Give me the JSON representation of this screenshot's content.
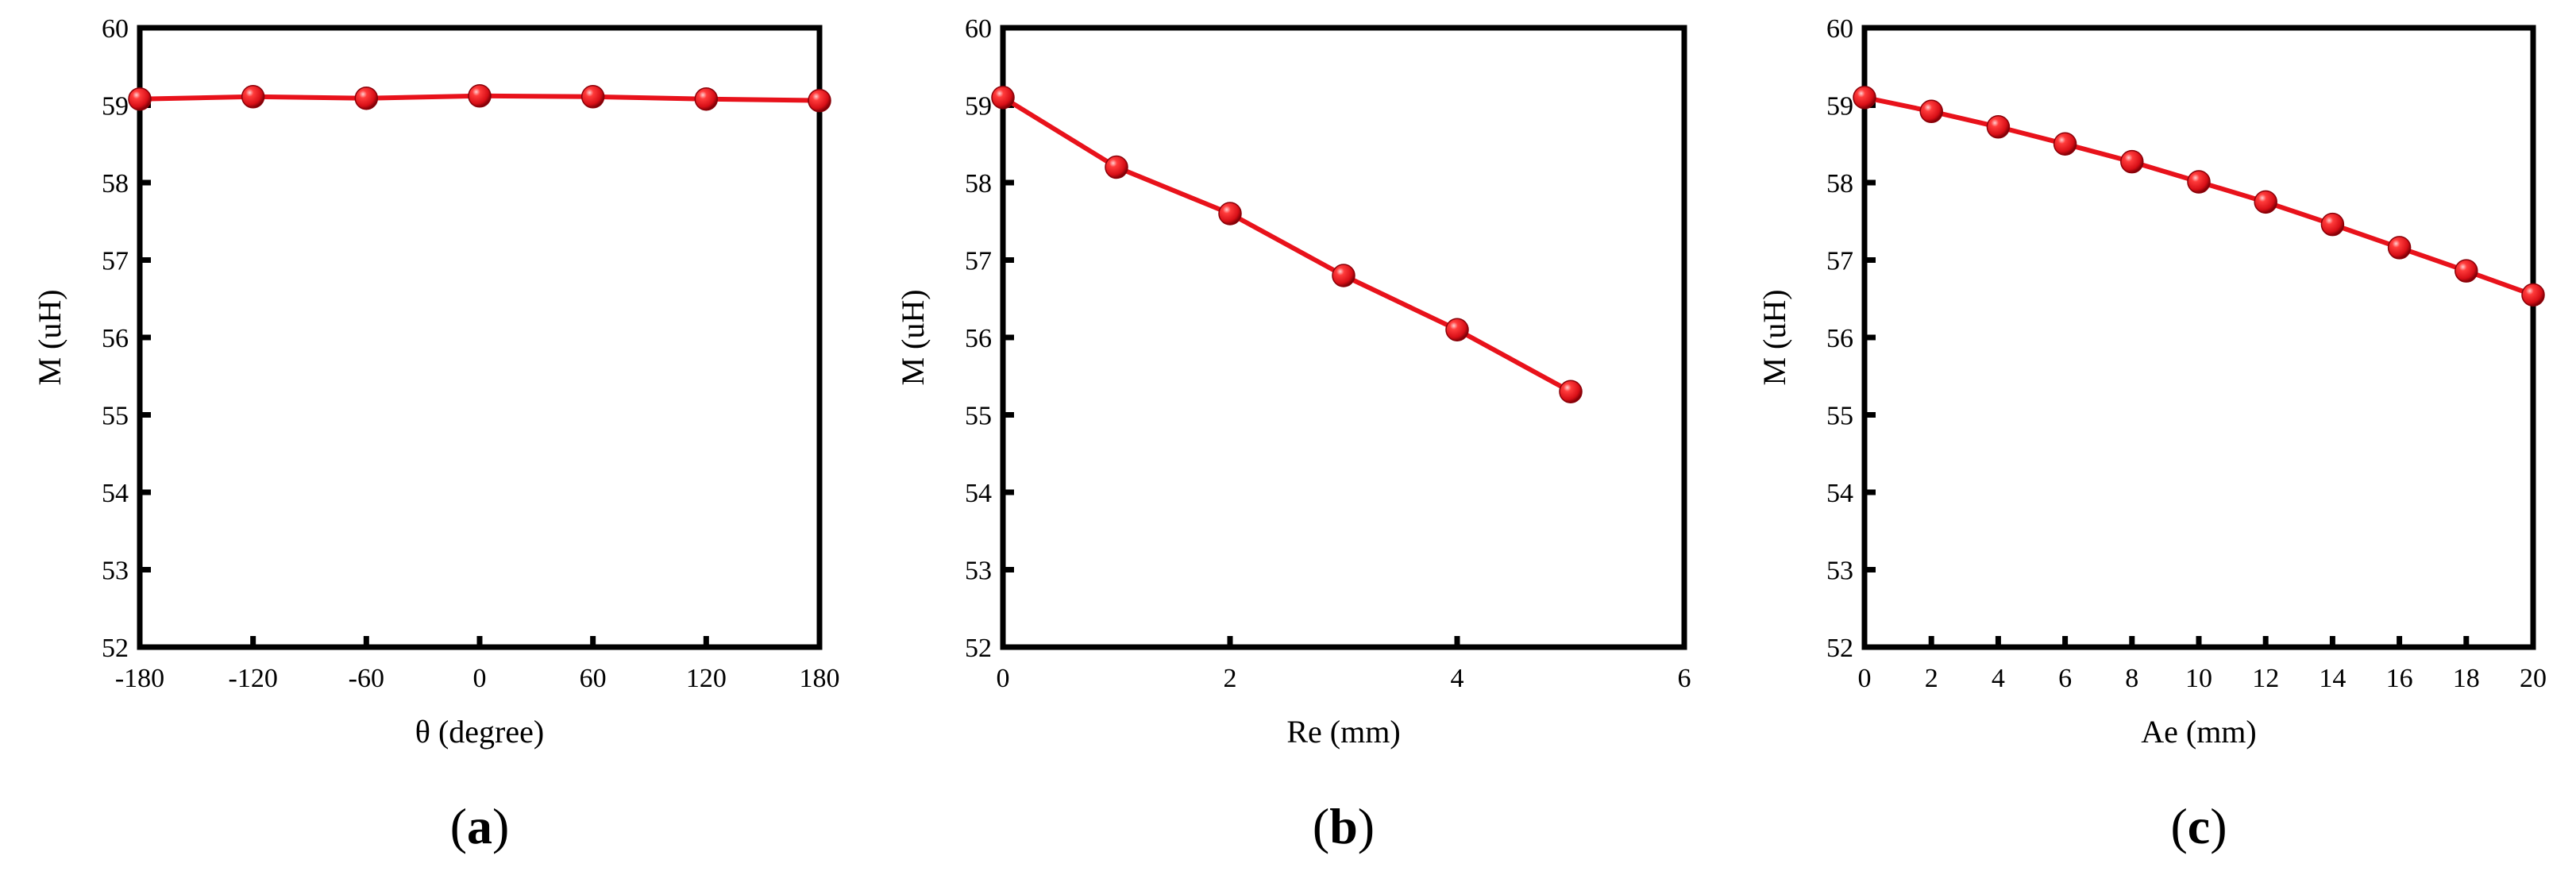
{
  "chart_data": [
    {
      "type": "line",
      "panel_label": "a",
      "xlabel": "θ (degree)",
      "ylabel": "M (uH)",
      "xlim": [
        -180,
        180
      ],
      "ylim": [
        52,
        60
      ],
      "xticks": [
        "-180",
        "-120",
        "-60",
        "0",
        "60",
        "120",
        "180"
      ],
      "yticks": [
        "52",
        "53",
        "54",
        "55",
        "56",
        "57",
        "58",
        "59",
        "60"
      ],
      "x": [
        -180,
        -120,
        -60,
        0,
        60,
        120,
        180
      ],
      "y": [
        59.08,
        59.11,
        59.09,
        59.12,
        59.11,
        59.08,
        59.06
      ],
      "grid": false,
      "color": "#e8121b"
    },
    {
      "type": "line",
      "panel_label": "b",
      "xlabel": "Re (mm)",
      "ylabel": "M (uH)",
      "xlim": [
        0,
        6
      ],
      "ylim": [
        52,
        60
      ],
      "xticks": [
        "0",
        "2",
        "4",
        "6"
      ],
      "yticks": [
        "52",
        "53",
        "54",
        "55",
        "56",
        "57",
        "58",
        "59",
        "60"
      ],
      "x": [
        0,
        1,
        2,
        3,
        4,
        5
      ],
      "y": [
        59.1,
        58.2,
        57.6,
        56.8,
        56.1,
        55.3
      ],
      "grid": false,
      "color": "#e8121b"
    },
    {
      "type": "line",
      "panel_label": "c",
      "xlabel": "Ae (mm)",
      "ylabel": "M (uH)",
      "xlim": [
        0,
        20
      ],
      "ylim": [
        52,
        60
      ],
      "xticks": [
        "0",
        "2",
        "4",
        "6",
        "8",
        "10",
        "12",
        "14",
        "16",
        "18",
        "20"
      ],
      "yticks": [
        "52",
        "53",
        "54",
        "55",
        "56",
        "57",
        "58",
        "59",
        "60"
      ],
      "x": [
        0,
        2,
        4,
        6,
        8,
        10,
        12,
        14,
        16,
        18,
        20
      ],
      "y": [
        59.1,
        58.92,
        58.72,
        58.5,
        58.27,
        58.01,
        57.75,
        57.46,
        57.16,
        56.86,
        56.55
      ],
      "grid": false,
      "color": "#e8121b"
    }
  ]
}
